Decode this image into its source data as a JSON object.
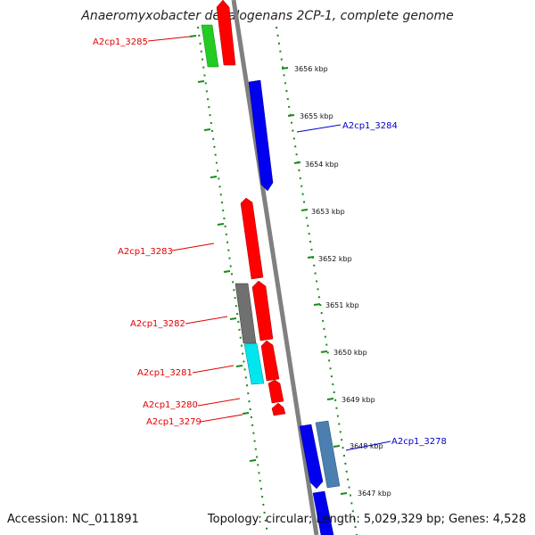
{
  "title": "Anaeromyxobacter dehalogenans 2CP-1, complete genome",
  "footer": {
    "accession": "Accession: NC_011891",
    "topology": "Topology: circular; Length: 5,029,329 bp; Genes: 4,528"
  },
  "colors": {
    "backbone": "#808080",
    "tick": "#1a8a1a",
    "gene_red": "#ff0000",
    "gene_blue": "#0000ee",
    "gene_green": "#22cc22",
    "gene_gray": "#707070",
    "gene_cyan": "#00e5ee",
    "gene_steel": "#4a7fb0",
    "label_red": "#e00000",
    "label_blue": "#0000cc"
  },
  "kbp_marks": [
    "3656 kbp",
    "3655 kbp",
    "3654 kbp",
    "3653 kbp",
    "3652 kbp",
    "3651 kbp",
    "3650 kbp",
    "3649 kbp",
    "3648 kbp",
    "3647 kbp"
  ],
  "gene_labels": [
    {
      "name": "A2cp1_3285",
      "strand": "forward"
    },
    {
      "name": "A2cp1_3284",
      "strand": "reverse"
    },
    {
      "name": "A2cp1_3283",
      "strand": "forward"
    },
    {
      "name": "A2cp1_3282",
      "strand": "forward"
    },
    {
      "name": "A2cp1_3281",
      "strand": "forward"
    },
    {
      "name": "A2cp1_3280",
      "strand": "forward"
    },
    {
      "name": "A2cp1_3279",
      "strand": "forward"
    },
    {
      "name": "A2cp1_3278",
      "strand": "reverse"
    }
  ]
}
